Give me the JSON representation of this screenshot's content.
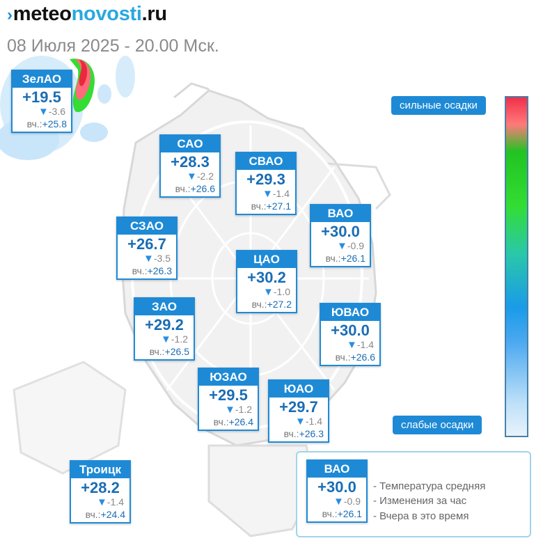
{
  "header": {
    "logo_part1": "meteo",
    "logo_part2": "novosti",
    "logo_part3": ".ru",
    "date": "08 Июля 2025 - 20.00 Мск."
  },
  "districts": {
    "zelao": {
      "name": "ЗелАО",
      "temp": "+19.5",
      "change": "-3.6",
      "yesterday_label": "вч.:",
      "yesterday": "+25.8"
    },
    "sao": {
      "name": "САО",
      "temp": "+28.3",
      "change": "-2.2",
      "yesterday_label": "вч.:",
      "yesterday": "+26.6"
    },
    "svao": {
      "name": "СВАО",
      "temp": "+29.3",
      "change": "-1.4",
      "yesterday_label": "вч.:",
      "yesterday": "+27.1"
    },
    "vao": {
      "name": "ВАО",
      "temp": "+30.0",
      "change": "-0.9",
      "yesterday_label": "вч.:",
      "yesterday": "+26.1"
    },
    "szao": {
      "name": "СЗАО",
      "temp": "+26.7",
      "change": "-3.5",
      "yesterday_label": "вч.:",
      "yesterday": "+26.3"
    },
    "cao": {
      "name": "ЦАО",
      "temp": "+30.2",
      "change": "-1.0",
      "yesterday_label": "вч.:",
      "yesterday": "+27.2"
    },
    "zao": {
      "name": "ЗАО",
      "temp": "+29.2",
      "change": "-1.2",
      "yesterday_label": "вч.:",
      "yesterday": "+26.5"
    },
    "yuvao": {
      "name": "ЮВАО",
      "temp": "+30.0",
      "change": "-1.4",
      "yesterday_label": "вч.:",
      "yesterday": "+26.6"
    },
    "yuzao": {
      "name": "ЮЗАО",
      "temp": "+29.5",
      "change": "-1.2",
      "yesterday_label": "вч.:",
      "yesterday": "+26.4"
    },
    "yuao": {
      "name": "ЮАО",
      "temp": "+29.7",
      "change": "-1.4",
      "yesterday_label": "вч.:",
      "yesterday": "+26.3"
    },
    "troitsk": {
      "name": "Троицк",
      "temp": "+28.2",
      "change": "-1.4",
      "yesterday_label": "вч.:",
      "yesterday": "+24.4"
    }
  },
  "scale": {
    "strong_label": "сильные осадки",
    "weak_label": "слабые осадки",
    "colors": [
      "#f0304a",
      "#22c322",
      "#1a9be8",
      "#e8f3fb"
    ]
  },
  "legend": {
    "sample": {
      "name": "ВАО",
      "temp": "+30.0",
      "change": "-0.9",
      "yesterday_label": "вч.:",
      "yesterday": "+26.1"
    },
    "line1": "- Температура средняя",
    "line2": "- Изменения за час",
    "line3": "- Вчера в это время"
  },
  "icons": {
    "change_arrow": "down-triangle-icon"
  }
}
